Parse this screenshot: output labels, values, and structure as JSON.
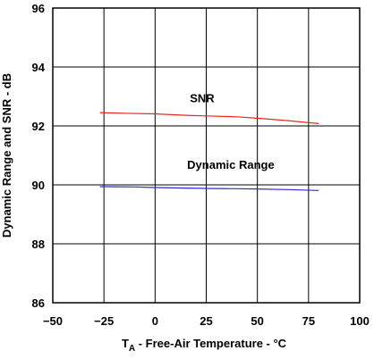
{
  "chart_data": {
    "type": "line",
    "title": "",
    "xlabel_main": "T",
    "xlabel_sub": "A",
    "xlabel_rest": " - Free-Air Temperature - °C",
    "ylabel": "Dynamic Range and SNR - dB",
    "xlim": [
      -50,
      100
    ],
    "ylim": [
      86,
      96
    ],
    "x_ticks": [
      -50,
      -25,
      0,
      25,
      50,
      75,
      100
    ],
    "y_ticks": [
      86,
      88,
      90,
      92,
      94,
      96
    ],
    "x_tick_labels": [
      "−50",
      "−25",
      "0",
      "25",
      "50",
      "75",
      "100"
    ],
    "y_tick_labels": [
      "86",
      "88",
      "90",
      "92",
      "94",
      "96"
    ],
    "grid": true,
    "series": [
      {
        "name": "SNR",
        "color": "#e8281e",
        "x": [
          -27,
          -15,
          0,
          15,
          25,
          40,
          50,
          65,
          80
        ],
        "y": [
          92.45,
          92.43,
          92.41,
          92.36,
          92.34,
          92.31,
          92.26,
          92.18,
          92.08
        ]
      },
      {
        "name": "Dynamic Range",
        "color": "#2b2bd6",
        "x": [
          -27,
          -10,
          0,
          15,
          25,
          40,
          50,
          65,
          80
        ],
        "y": [
          89.94,
          89.93,
          89.91,
          89.89,
          89.88,
          89.87,
          89.86,
          89.84,
          89.81
        ]
      }
    ],
    "annotations": [
      {
        "text": "SNR",
        "x": 23,
        "y": 92.8
      },
      {
        "text": "Dynamic Range",
        "x": 37,
        "y": 90.55
      }
    ]
  }
}
